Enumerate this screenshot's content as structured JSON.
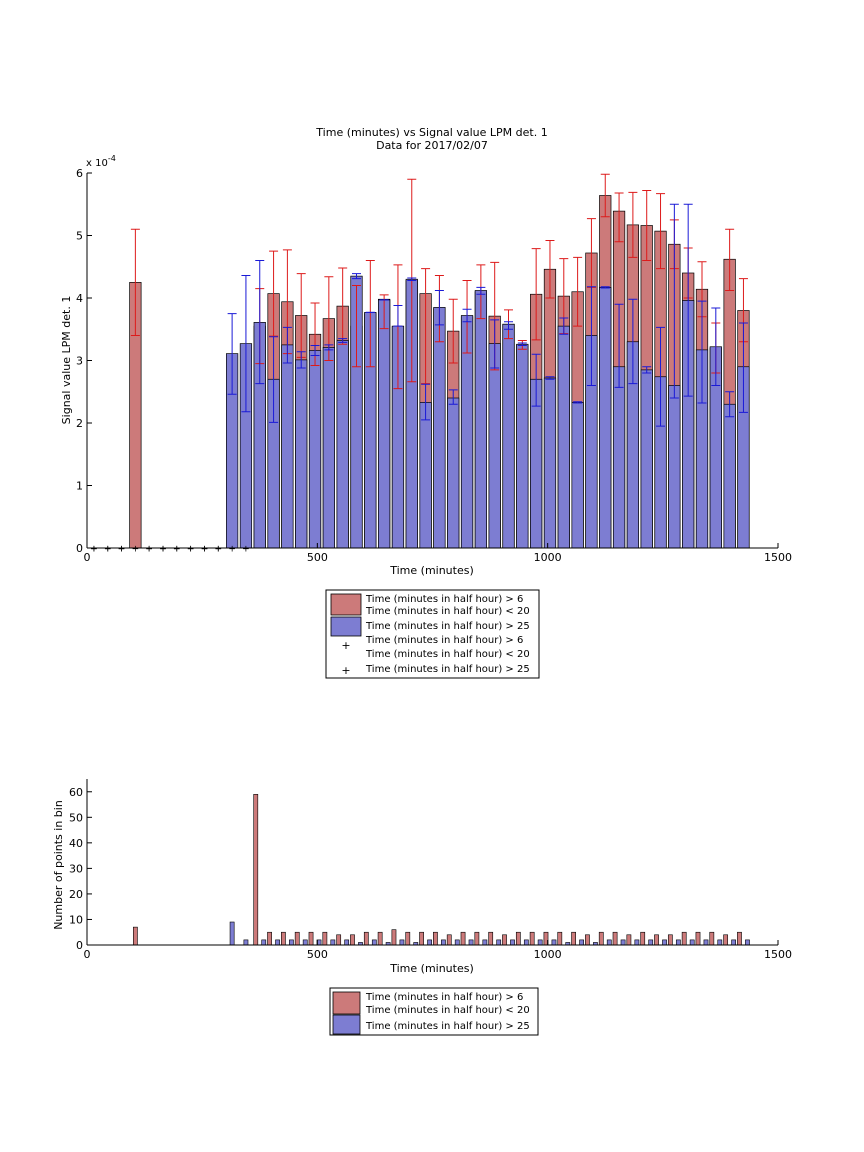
{
  "figure": {
    "title_line1": "Time (minutes) vs Signal value LPM det. 1",
    "title_line2": "Data for 2017/02/07"
  },
  "colors": {
    "series_red_fill": "#cc7a7a",
    "series_blue_fill": "#7d7dd2",
    "errorbar_red": "#dd1a1a",
    "errorbar_blue": "#1a1ad6",
    "axis": "#000000"
  },
  "chart_data": [
    {
      "type": "bar",
      "title": "Time (minutes) vs Signal value LPM det. 1",
      "subtitle": "Data for 2017/02/07",
      "xlabel": "Time (minutes)",
      "ylabel": "Signal value LPM det. 1",
      "y_exponent_label": "x 10",
      "y_exponent_power": "-4",
      "xlim": [
        0,
        1500
      ],
      "ylim": [
        0,
        6
      ],
      "x_ticks": [
        "0",
        "500",
        "1000",
        "1500"
      ],
      "y_ticks": [
        "0",
        "1",
        "2",
        "3",
        "4",
        "5",
        "6"
      ],
      "grid": false,
      "legend_position": "below",
      "legend": [
        "Time (minutes in half hour) > 6\nTime (minutes in half hour) < 20",
        "Time (minutes in half hour) > 25",
        "Time (minutes in half hour) > 6\nTime (minutes in half hour) < 20",
        "Time (minutes in half hour) > 25"
      ],
      "series": [
        {
          "name": "Time (minutes in half hour) > 6 Time (minutes in half hour) < 20",
          "x": [
            105,
            375,
            405,
            435,
            465,
            495,
            525,
            555,
            585,
            615,
            645,
            675,
            705,
            735,
            765,
            795,
            825,
            855,
            885,
            915,
            945,
            975,
            1005,
            1035,
            1065,
            1095,
            1125,
            1155,
            1185,
            1215,
            1245,
            1275,
            1305,
            1335,
            1365,
            1395,
            1425
          ],
          "values": [
            4.25,
            3.55,
            4.07,
            3.94,
            3.72,
            3.42,
            3.67,
            3.87,
            3.55,
            3.75,
            3.98,
            3.54,
            4.28,
            4.07,
            3.83,
            3.47,
            3.7,
            4.1,
            3.71,
            3.58,
            3.25,
            4.06,
            4.46,
            4.03,
            4.1,
            4.72,
            5.64,
            5.39,
            5.17,
            5.16,
            5.07,
            4.86,
            4.4,
            4.14,
            3.2,
            4.62,
            3.8
          ],
          "err_low": [
            3.4,
            2.95,
            3.39,
            3.11,
            3.05,
            2.92,
            3.0,
            3.26,
            2.9,
            2.9,
            3.51,
            2.55,
            2.66,
            2.63,
            3.3,
            2.96,
            3.12,
            3.67,
            2.85,
            3.35,
            3.18,
            3.33,
            4.0,
            3.43,
            3.55,
            4.17,
            5.3,
            4.9,
            4.65,
            4.6,
            4.47,
            4.47,
            4.0,
            3.7,
            2.8,
            4.12,
            3.3
          ],
          "err_high": [
            5.1,
            4.15,
            4.75,
            4.77,
            4.39,
            3.92,
            4.34,
            4.48,
            4.2,
            4.6,
            4.05,
            4.53,
            5.9,
            4.47,
            4.36,
            3.98,
            4.28,
            4.53,
            4.57,
            3.81,
            3.32,
            4.79,
            4.92,
            4.63,
            4.65,
            5.27,
            5.98,
            5.68,
            5.69,
            5.72,
            5.67,
            5.25,
            4.8,
            4.58,
            3.6,
            5.1,
            4.31
          ],
          "empty_bin_x": [
            15,
            45,
            75,
            135,
            165,
            195,
            225,
            255,
            285,
            315,
            345
          ]
        },
        {
          "name": "Time (minutes in half hour) > 25",
          "x": [
            315,
            345,
            375,
            405,
            435,
            465,
            495,
            525,
            555,
            585,
            615,
            645,
            675,
            705,
            735,
            765,
            795,
            825,
            855,
            885,
            915,
            945,
            975,
            1005,
            1035,
            1065,
            1095,
            1125,
            1155,
            1185,
            1215,
            1245,
            1275,
            1305,
            1335,
            1365,
            1395,
            1425
          ],
          "values": [
            3.11,
            3.27,
            3.61,
            2.7,
            3.25,
            3.01,
            3.16,
            3.21,
            3.32,
            4.35,
            3.77,
            3.97,
            3.55,
            4.3,
            2.33,
            3.85,
            2.4,
            3.72,
            4.12,
            3.27,
            3.58,
            3.26,
            2.7,
            2.72,
            3.55,
            2.33,
            3.4,
            4.17,
            2.9,
            3.3,
            2.85,
            2.74,
            2.6,
            3.96,
            3.17,
            3.22,
            2.3,
            2.9
          ],
          "err_low": [
            2.46,
            2.18,
            2.63,
            2.01,
            2.96,
            2.88,
            3.08,
            3.17,
            3.29,
            4.31,
            3.77,
            3.97,
            3.55,
            4.28,
            2.05,
            3.57,
            2.3,
            3.62,
            4.06,
            2.88,
            3.5,
            3.24,
            2.27,
            2.7,
            3.42,
            2.32,
            2.6,
            4.16,
            2.57,
            2.63,
            2.8,
            1.95,
            2.4,
            2.43,
            2.32,
            2.6,
            2.1,
            2.17
          ],
          "err_high": [
            3.75,
            4.36,
            4.6,
            3.38,
            3.53,
            3.14,
            3.24,
            3.25,
            3.35,
            4.39,
            3.77,
            3.97,
            3.88,
            4.32,
            2.62,
            4.12,
            2.53,
            3.82,
            4.17,
            3.65,
            3.62,
            3.28,
            3.1,
            2.74,
            3.68,
            2.34,
            4.18,
            4.18,
            3.9,
            3.98,
            2.9,
            3.53,
            5.5,
            5.5,
            3.95,
            3.84,
            2.5,
            3.6
          ],
          "empty_bin_x": [
            15,
            45,
            75,
            105,
            135,
            165,
            195,
            225,
            255,
            285
          ]
        }
      ]
    },
    {
      "type": "bar",
      "xlabel": "Time (minutes)",
      "ylabel": "Number of points in bin",
      "xlim": [
        0,
        1500
      ],
      "ylim": [
        0,
        65
      ],
      "x_ticks": [
        "0",
        "500",
        "1000",
        "1500"
      ],
      "y_ticks": [
        "0",
        "10",
        "20",
        "30",
        "40",
        "50",
        "60"
      ],
      "grid": false,
      "legend_position": "below",
      "legend": [
        "Time (minutes in half hour) > 6\nTime (minutes in half hour) < 20",
        "Time (minutes in half hour) > 25"
      ],
      "series": [
        {
          "name": "Time (minutes in half hour) > 6 Time (minutes in half hour) < 20",
          "x": [
            105,
            375,
            405,
            435,
            465,
            495,
            525,
            555,
            585,
            615,
            645,
            675,
            705,
            735,
            765,
            795,
            825,
            855,
            885,
            915,
            945,
            975,
            1005,
            1035,
            1065,
            1095,
            1125,
            1155,
            1185,
            1215,
            1245,
            1275,
            1305,
            1335,
            1365,
            1395,
            1425
          ],
          "values": [
            7,
            59,
            5,
            5,
            5,
            5,
            5,
            4,
            4,
            5,
            5,
            6,
            5,
            5,
            5,
            4,
            5,
            5,
            5,
            4,
            5,
            5,
            5,
            5,
            5,
            4,
            5,
            5,
            4,
            5,
            4,
            4,
            5,
            5,
            5,
            4,
            5
          ]
        },
        {
          "name": "Time (minutes in half hour) > 25",
          "x": [
            315,
            345,
            375,
            405,
            435,
            465,
            495,
            525,
            555,
            585,
            615,
            645,
            675,
            705,
            735,
            765,
            795,
            825,
            855,
            885,
            915,
            945,
            975,
            1005,
            1035,
            1065,
            1095,
            1125,
            1155,
            1185,
            1215,
            1245,
            1275,
            1305,
            1335,
            1365,
            1395,
            1425
          ],
          "values": [
            9,
            2,
            2,
            2,
            2,
            2,
            2,
            2,
            2,
            1,
            2,
            1,
            2,
            1,
            2,
            2,
            2,
            2,
            2,
            2,
            2,
            2,
            2,
            2,
            1,
            2,
            1,
            2,
            2,
            2,
            2,
            2,
            2,
            2,
            2,
            2,
            2,
            2
          ]
        }
      ]
    }
  ]
}
